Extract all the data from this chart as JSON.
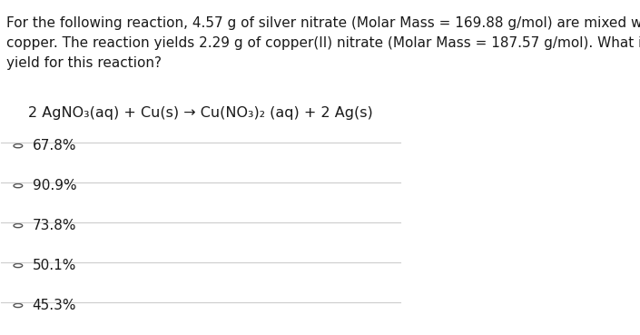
{
  "background_color": "#ffffff",
  "question_line1": "For the following reaction, 4.57 g of silver nitrate (Molar Mass = 169.88 g/mol) are mixed with excess",
  "question_line2": "copper. The reaction yields 2.29 g of copper(II) nitrate (Molar Mass = 187.57 g/mol). What is the percent",
  "question_line3": "yield for this reaction?",
  "equation": "2 AgNO₃(aq) + Cu(s) → Cu(NO₃)₂ (aq) + 2 Ag(s)",
  "choices": [
    "67.8%",
    "90.9%",
    "73.8%",
    "50.1%",
    "45.3%"
  ],
  "text_color": "#1a1a1a",
  "line_color": "#cccccc",
  "font_size_question": 11,
  "font_size_equation": 11.5,
  "font_size_choices": 11
}
